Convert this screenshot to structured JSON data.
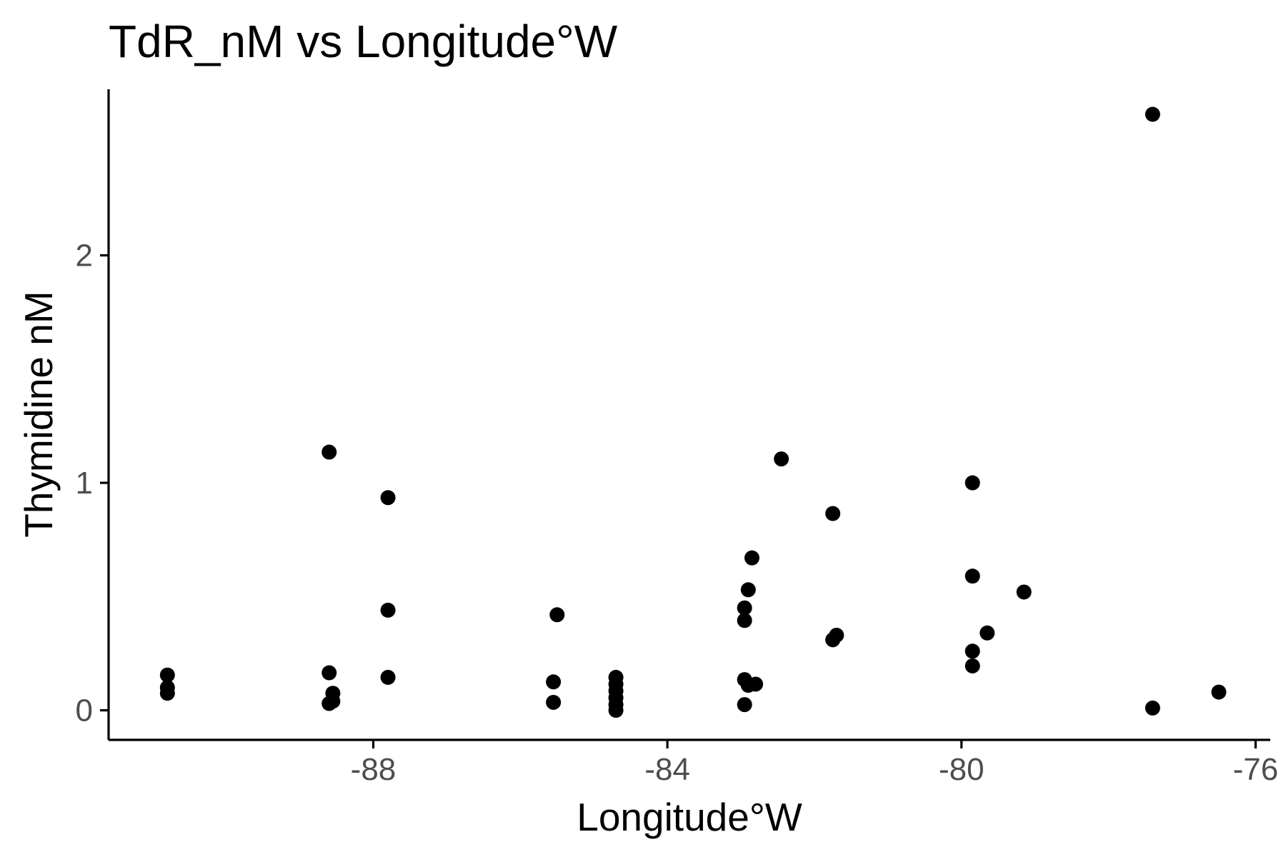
{
  "chart_data": {
    "type": "scatter",
    "title": "TdR_nM vs Longitude°W",
    "xlabel": "Longitude°W",
    "ylabel": "Thymidine nM",
    "xlim": [
      -91.6,
      -75.8
    ],
    "ylim": [
      -0.13,
      2.73
    ],
    "x_ticks": [
      -88,
      -84,
      -80,
      -76
    ],
    "x_tick_labels": [
      "-88",
      "-84",
      "-80",
      "-76"
    ],
    "y_ticks": [
      0,
      1,
      2
    ],
    "y_tick_labels": [
      "0",
      "1",
      "2"
    ],
    "grid": false,
    "legend": "none",
    "point_color": "#000000",
    "series": [
      {
        "x": [
          -90.8,
          -90.8,
          -90.8,
          -88.6,
          -88.6,
          -88.6,
          -88.55,
          -88.55,
          -87.8,
          -87.8,
          -87.8,
          -85.5,
          -85.55,
          -85.55,
          -84.7,
          -84.7,
          -84.7,
          -84.7,
          -84.7,
          -84.7,
          -82.95,
          -82.95,
          -82.9,
          -82.85,
          -82.95,
          -82.95,
          -82.9,
          -82.8,
          -82.45,
          -81.75,
          -81.75,
          -81.7,
          -79.85,
          -79.85,
          -79.85,
          -79.85,
          -79.65,
          -79.15,
          -77.4,
          -77.4,
          -76.5
        ],
        "y": [
          0.155,
          0.1,
          0.075,
          1.135,
          0.165,
          0.03,
          0.075,
          0.04,
          0.935,
          0.44,
          0.145,
          0.42,
          0.125,
          0.035,
          0.145,
          0.115,
          0.085,
          0.055,
          0.025,
          0.0,
          0.45,
          0.395,
          0.53,
          0.67,
          0.135,
          0.025,
          0.11,
          0.115,
          1.105,
          0.865,
          0.31,
          0.33,
          1.0,
          0.59,
          0.26,
          0.195,
          0.34,
          0.52,
          2.62,
          0.01,
          0.08
        ]
      }
    ]
  }
}
